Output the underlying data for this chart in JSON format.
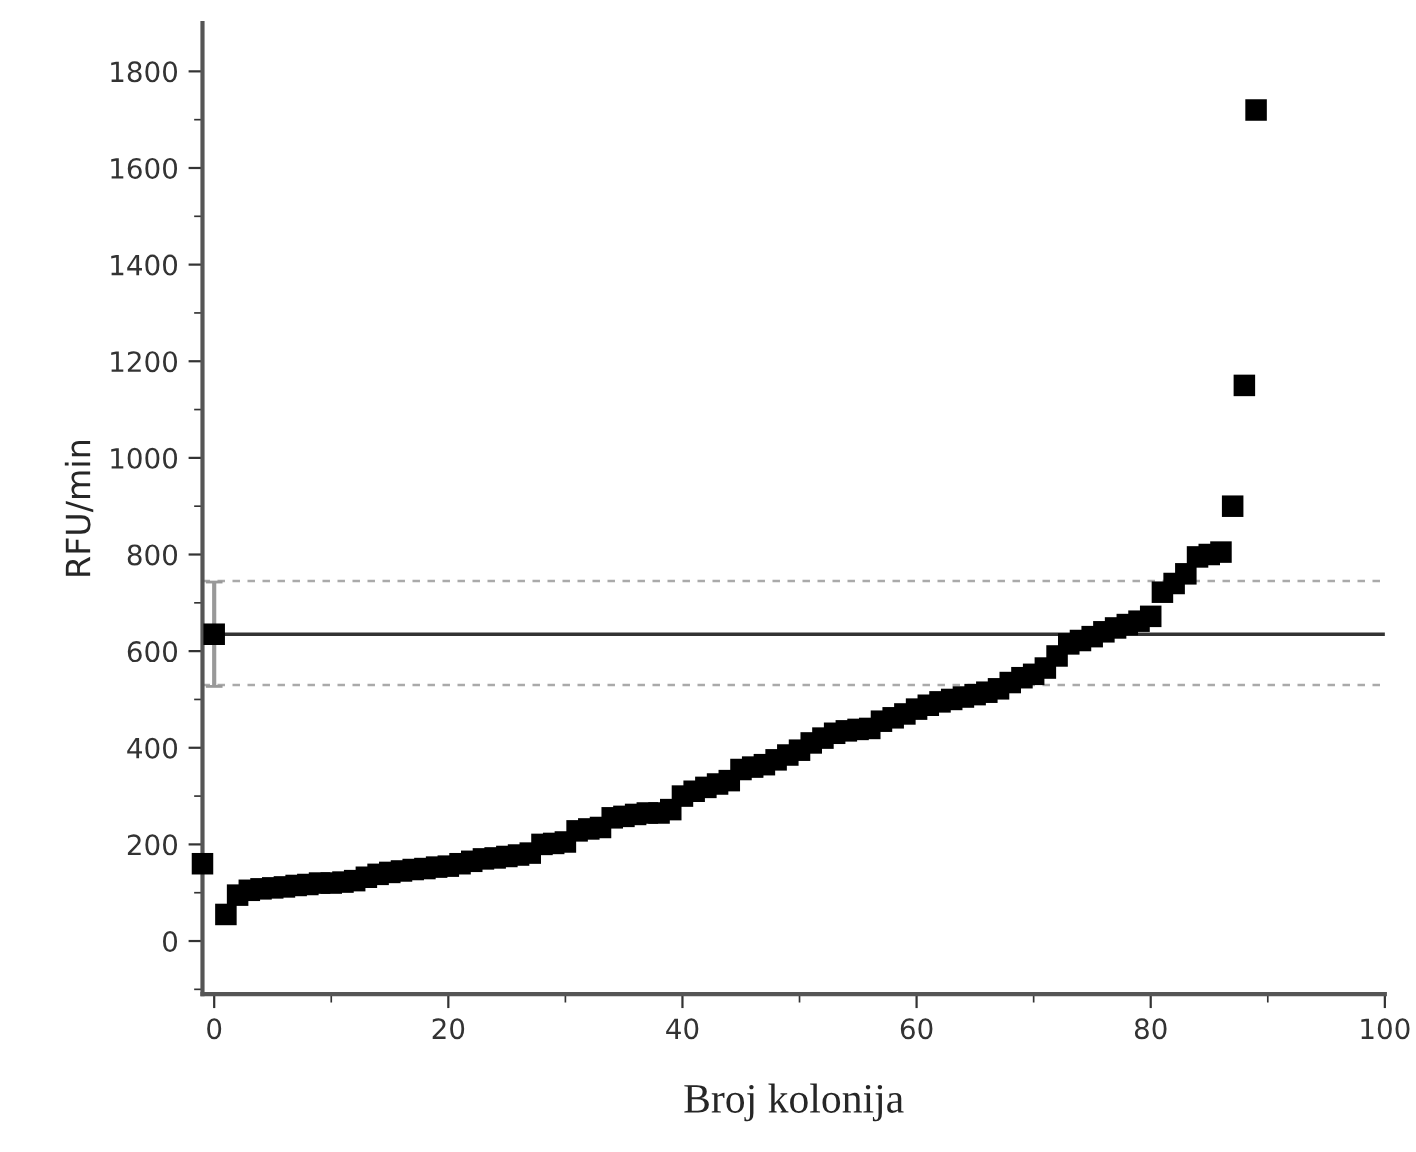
{
  "chart_data": {
    "type": "scatter",
    "xlabel": "Broj kolonija",
    "ylabel": "RFU/min",
    "xlim": [
      -1,
      100
    ],
    "ylim": [
      -110,
      1900
    ],
    "xticks": [
      0,
      20,
      40,
      60,
      80,
      100
    ],
    "yticks": [
      0,
      200,
      400,
      600,
      800,
      1000,
      1200,
      1400,
      1600,
      1800
    ],
    "marker": "square",
    "grid": false,
    "legend": false,
    "series": [
      {
        "color": "#000000",
        "x": [
          -1,
          1,
          2,
          3,
          4,
          5,
          6,
          7,
          8,
          9,
          10,
          11,
          12,
          13,
          14,
          15,
          16,
          17,
          18,
          19,
          20,
          21,
          22,
          23,
          24,
          25,
          26,
          27,
          28,
          29,
          30,
          31,
          32,
          33,
          34,
          35,
          36,
          37,
          38,
          39,
          40,
          41,
          42,
          43,
          44,
          45,
          46,
          47,
          48,
          49,
          50,
          51,
          52,
          53,
          54,
          55,
          56,
          57,
          58,
          59,
          60,
          61,
          62,
          63,
          64,
          65,
          66,
          67,
          68,
          69,
          70,
          71,
          72,
          73,
          74,
          75,
          76,
          77,
          78,
          79,
          80,
          81,
          82,
          83,
          84,
          85,
          86,
          87,
          88,
          89
        ],
        "values": [
          160,
          55,
          95,
          105,
          108,
          110,
          112,
          115,
          117,
          120,
          120,
          122,
          125,
          132,
          138,
          142,
          145,
          148,
          150,
          153,
          155,
          160,
          165,
          170,
          172,
          175,
          178,
          182,
          200,
          202,
          205,
          228,
          232,
          235,
          255,
          258,
          262,
          265,
          265,
          272,
          300,
          310,
          318,
          325,
          332,
          355,
          360,
          365,
          375,
          385,
          395,
          410,
          420,
          430,
          435,
          438,
          440,
          455,
          462,
          470,
          480,
          488,
          495,
          500,
          505,
          510,
          515,
          522,
          535,
          545,
          552,
          565,
          590,
          615,
          622,
          630,
          640,
          648,
          655,
          662,
          672,
          722,
          740,
          760,
          795,
          800,
          805,
          900,
          1150,
          1720
        ]
      },
      {
        "color": "#000000",
        "x": [
          0
        ],
        "values": [
          635
        ],
        "errors": [
          108
        ]
      }
    ],
    "ref_lines": [
      {
        "axis": "y",
        "value": 635,
        "color": "#333333",
        "line_style": "solid"
      },
      {
        "axis": "y",
        "value": 745,
        "color": "#aaaaaa",
        "line_style": "dashed"
      },
      {
        "axis": "y",
        "value": 530,
        "color": "#aaaaaa",
        "line_style": "dashed"
      }
    ]
  }
}
